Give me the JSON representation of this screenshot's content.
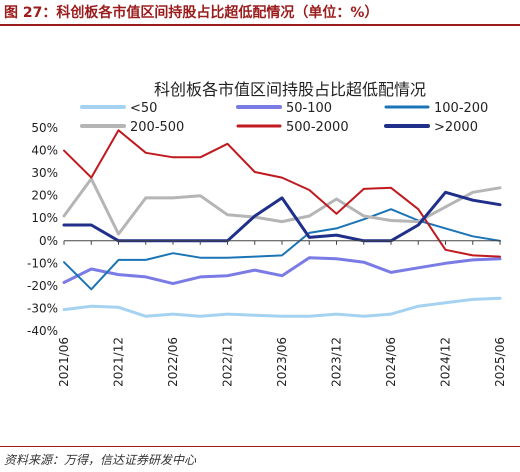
{
  "figure_title": "图 27：科创板各市值区间持股占比超低配情况（单位：%）",
  "source_note": "资料来源：万得，信达证券研发中心",
  "chart_data": {
    "type": "line",
    "title": "科创板各市值区间持股占比超低配情况",
    "xlabel": "",
    "ylabel": "",
    "ylim": [
      -40,
      50
    ],
    "yticks": [
      50,
      40,
      30,
      20,
      10,
      0,
      -10,
      -20,
      -30,
      -40
    ],
    "ytick_labels": [
      "50%",
      "40%",
      "30%",
      "20%",
      "10%",
      "0%",
      "-10%",
      "-20%",
      "-30%",
      "-40%"
    ],
    "grid": false,
    "legend_position": "top",
    "x": [
      "2021/06",
      "2021/09",
      "2021/12",
      "2022/03",
      "2022/06",
      "2022/09",
      "2022/12",
      "2023/03",
      "2023/06",
      "2023/09",
      "2023/12",
      "2024/03",
      "2024/06",
      "2024/09",
      "2024/12",
      "2025/03",
      "2025/06"
    ],
    "xtick_labels": [
      "2021/06",
      "2021/12",
      "2022/06",
      "2022/12",
      "2023/06",
      "2023/12",
      "2024/06",
      "2024/12",
      "2025/06"
    ],
    "series": [
      {
        "name": "<50",
        "color": "#a6d2f2",
        "width": 3,
        "values": [
          -30.5,
          -29.0,
          -29.5,
          -33.5,
          -32.5,
          -33.5,
          -32.5,
          -33.0,
          -33.5,
          -33.5,
          -32.5,
          -33.5,
          -32.5,
          -29.0,
          -27.5,
          -26.0,
          -25.5
        ]
      },
      {
        "name": "50-100",
        "color": "#7b7be6",
        "width": 3,
        "values": [
          -18.5,
          -12.5,
          -15.0,
          -16.0,
          -19.0,
          -16.0,
          -15.5,
          -13.0,
          -15.5,
          -7.5,
          -8.0,
          -9.5,
          -14.0,
          -12.0,
          -10.0,
          -8.5,
          -8.0
        ]
      },
      {
        "name": "100-200",
        "color": "#1a74b5",
        "width": 2,
        "values": [
          -9.5,
          -21.5,
          -8.5,
          -8.5,
          -5.5,
          -7.5,
          -7.5,
          -7.0,
          -6.5,
          3.5,
          5.5,
          9.5,
          14.0,
          9.0,
          5.5,
          2.0,
          0.0
        ]
      },
      {
        "name": "200-500",
        "color": "#b5b5b5",
        "width": 3,
        "values": [
          11.0,
          27.5,
          3.0,
          19.0,
          19.0,
          20.0,
          11.5,
          10.5,
          8.5,
          11.0,
          18.5,
          11.0,
          9.0,
          8.5,
          15.0,
          21.5,
          23.5
        ]
      },
      {
        "name": "500-2000",
        "color": "#c0191e",
        "width": 2,
        "values": [
          40.0,
          28.0,
          49.0,
          39.0,
          37.0,
          37.0,
          43.0,
          30.5,
          28.0,
          22.5,
          12.0,
          23.0,
          23.5,
          14.0,
          -4.0,
          -6.5,
          -7.0
        ]
      },
      {
        "name": ">2000",
        "color": "#1f2f8a",
        "width": 3,
        "values": [
          7.0,
          7.0,
          0.0,
          0.0,
          0.0,
          0.0,
          0.0,
          11.0,
          19.0,
          1.5,
          2.5,
          0.0,
          0.0,
          7.0,
          21.5,
          18.0,
          16.0
        ]
      }
    ]
  }
}
